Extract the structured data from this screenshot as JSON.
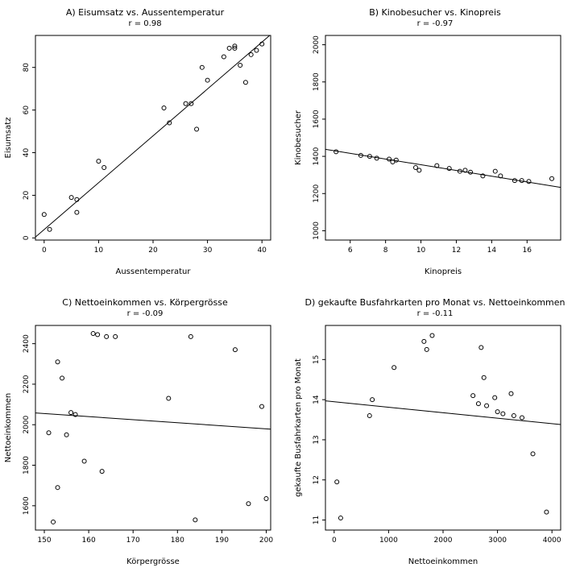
{
  "page": {
    "background": "#ffffff",
    "foreground": "#000000"
  },
  "chart_data": [
    {
      "type": "scatter",
      "panel": "A",
      "title": "A) Eisumsatz vs. Aussentemperatur",
      "subtitle": "r = 0.98",
      "correlation": 0.98,
      "xlabel": "Aussentemperatur",
      "ylabel": "Eisumsatz",
      "xlim": [
        -1.6,
        41.6
      ],
      "ylim": [
        -1,
        95
      ],
      "xticks": [
        0,
        10,
        20,
        30,
        40
      ],
      "yticks": [
        0,
        20,
        40,
        60,
        80
      ],
      "grid": false,
      "line": {
        "x": [
          -1.6,
          41.6
        ],
        "y": [
          0.4,
          95.4
        ]
      },
      "points": [
        [
          0,
          11
        ],
        [
          1,
          4
        ],
        [
          5,
          19
        ],
        [
          6,
          18
        ],
        [
          6,
          12
        ],
        [
          10,
          36
        ],
        [
          11,
          33
        ],
        [
          22,
          61
        ],
        [
          23,
          54
        ],
        [
          26,
          63
        ],
        [
          27,
          63
        ],
        [
          28,
          51
        ],
        [
          29,
          80
        ],
        [
          30,
          74
        ],
        [
          33,
          85
        ],
        [
          34,
          89
        ],
        [
          35,
          90
        ],
        [
          35,
          89
        ],
        [
          36,
          81
        ],
        [
          37,
          73
        ],
        [
          38,
          86
        ],
        [
          39,
          88
        ],
        [
          40,
          91
        ]
      ]
    },
    {
      "type": "scatter",
      "panel": "B",
      "title": "B) Kinobesucher vs. Kinopreis",
      "subtitle": "r = -0.97",
      "correlation": -0.97,
      "xlabel": "Kinopreis",
      "ylabel": "Kinobesucher",
      "xlim": [
        4.6,
        17.9
      ],
      "ylim": [
        950,
        2050
      ],
      "xticks": [
        6,
        8,
        10,
        12,
        14,
        16
      ],
      "yticks": [
        1000,
        1200,
        1400,
        1600,
        1800,
        2000
      ],
      "grid": false,
      "line": {
        "x": [
          4.6,
          17.9
        ],
        "y": [
          1438,
          1233
        ]
      },
      "points": [
        [
          5.2,
          1425
        ],
        [
          6.6,
          1405
        ],
        [
          7.1,
          1400
        ],
        [
          7.5,
          1390
        ],
        [
          8.2,
          1385
        ],
        [
          8.4,
          1370
        ],
        [
          8.6,
          1380
        ],
        [
          9.7,
          1340
        ],
        [
          9.9,
          1325
        ],
        [
          10.9,
          1350
        ],
        [
          11.6,
          1335
        ],
        [
          12.2,
          1320
        ],
        [
          12.5,
          1325
        ],
        [
          12.8,
          1315
        ],
        [
          13.5,
          1295
        ],
        [
          14.2,
          1320
        ],
        [
          14.5,
          1295
        ],
        [
          15.3,
          1270
        ],
        [
          15.7,
          1270
        ],
        [
          16.1,
          1265
        ],
        [
          17.4,
          1280
        ]
      ]
    },
    {
      "type": "scatter",
      "panel": "C",
      "title": "C) Nettoeinkommen vs. Körpergrösse",
      "subtitle": "r = -0.09",
      "correlation": -0.09,
      "xlabel": "Körpergrösse",
      "ylabel": "Nettoeinkommen",
      "xlim": [
        148,
        201
      ],
      "ylim": [
        1480,
        2490
      ],
      "xticks": [
        150,
        160,
        170,
        180,
        190,
        200
      ],
      "yticks": [
        1600,
        1800,
        2000,
        2200,
        2400
      ],
      "grid": false,
      "line": {
        "x": [
          148,
          201
        ],
        "y": [
          2058,
          1978
        ]
      },
      "points": [
        [
          151,
          1960
        ],
        [
          152,
          1520
        ],
        [
          153,
          1690
        ],
        [
          153,
          2310
        ],
        [
          154,
          2230
        ],
        [
          155,
          1950
        ],
        [
          156,
          2060
        ],
        [
          157,
          2050
        ],
        [
          159,
          1820
        ],
        [
          161,
          2450
        ],
        [
          162,
          2445
        ],
        [
          163,
          1770
        ],
        [
          164,
          2435
        ],
        [
          166,
          2435
        ],
        [
          178,
          2130
        ],
        [
          183,
          2435
        ],
        [
          184,
          1530
        ],
        [
          193,
          2370
        ],
        [
          196,
          1610
        ],
        [
          199,
          2090
        ],
        [
          200,
          1635
        ]
      ]
    },
    {
      "type": "scatter",
      "panel": "D",
      "title": "D) gekaufte Busfahrkarten pro Monat vs. Nettoeinkommen",
      "subtitle": "r = -0.11",
      "correlation": -0.11,
      "xlabel": "Nettoeinkommen",
      "ylabel": "gekaufte Busfahrkarten pro Monat",
      "xlim": [
        -160,
        4160
      ],
      "ylim": [
        10.75,
        15.85
      ],
      "xticks": [
        0,
        1000,
        2000,
        3000,
        4000
      ],
      "yticks": [
        11,
        12,
        13,
        14,
        15
      ],
      "grid": false,
      "line": {
        "x": [
          -160,
          4160
        ],
        "y": [
          13.97,
          13.38
        ]
      },
      "points": [
        [
          50,
          11.95
        ],
        [
          120,
          11.05
        ],
        [
          650,
          13.6
        ],
        [
          700,
          14.0
        ],
        [
          1100,
          14.8
        ],
        [
          1650,
          15.45
        ],
        [
          1700,
          15.25
        ],
        [
          1800,
          15.6
        ],
        [
          2550,
          14.1
        ],
        [
          2650,
          13.9
        ],
        [
          2700,
          15.3
        ],
        [
          2750,
          14.55
        ],
        [
          2800,
          13.85
        ],
        [
          2950,
          14.05
        ],
        [
          3000,
          13.7
        ],
        [
          3100,
          13.65
        ],
        [
          3250,
          14.15
        ],
        [
          3300,
          13.6
        ],
        [
          3450,
          13.55
        ],
        [
          3650,
          12.65
        ],
        [
          3900,
          11.2
        ]
      ]
    }
  ]
}
